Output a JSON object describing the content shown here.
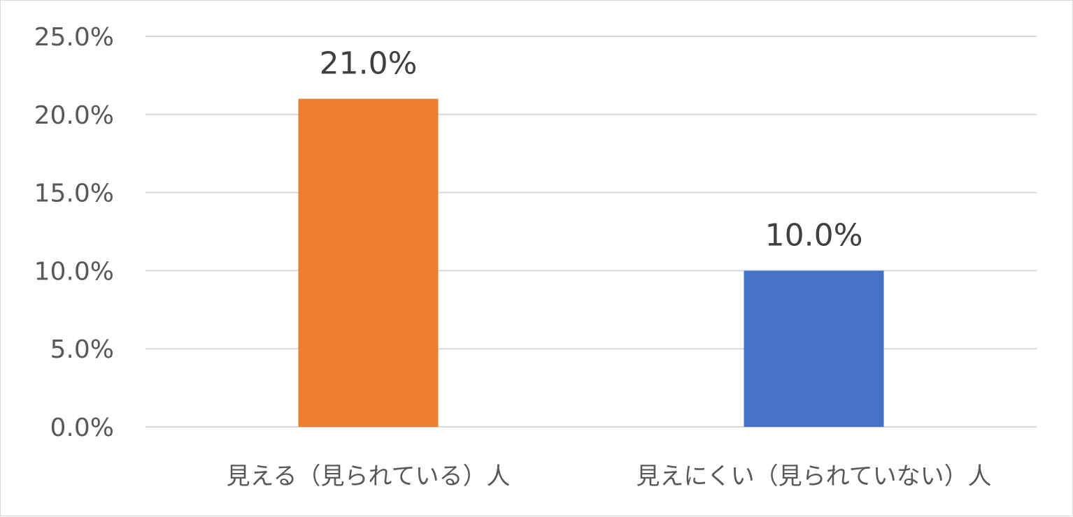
{
  "chart_data": {
    "type": "bar",
    "categories": [
      "見える（見られている）人",
      "見えにくい（見られていない）人"
    ],
    "values": [
      21.0,
      10.0
    ],
    "data_labels": [
      "21.0%",
      "10.0%"
    ],
    "bar_colors": [
      "#ed7d31",
      "#4472c4"
    ],
    "yticks": [
      0,
      5,
      10,
      15,
      20,
      25
    ],
    "ytick_labels": [
      "0.0%",
      "5.0%",
      "10.0%",
      "15.0%",
      "20.0%",
      "25.0%"
    ],
    "ylim": [
      0,
      25
    ],
    "grid": true,
    "legend": false,
    "title": "",
    "xlabel": "",
    "ylabel": ""
  }
}
